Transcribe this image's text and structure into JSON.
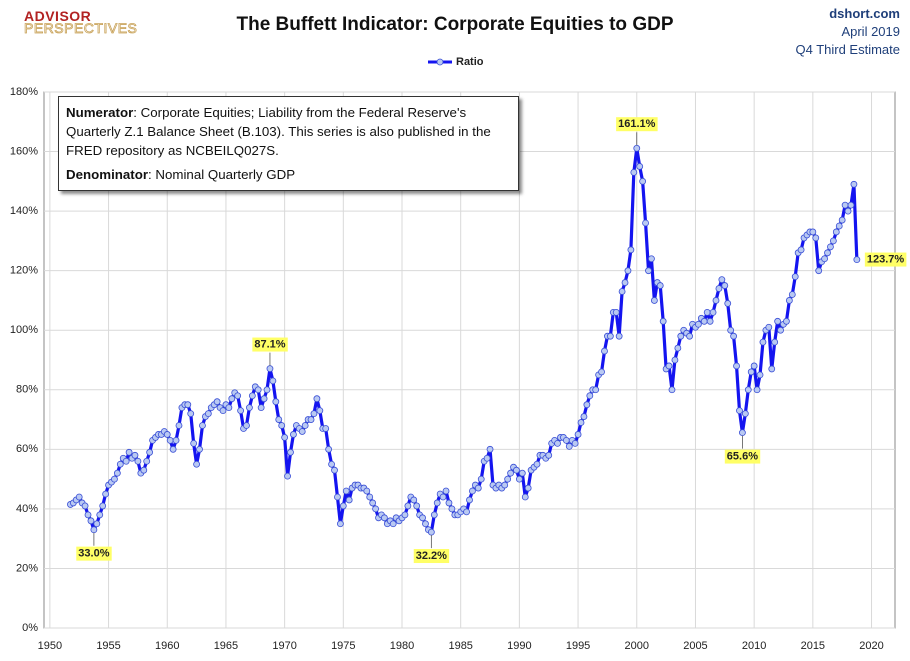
{
  "header": {
    "logo_top": "ADVISOR",
    "logo_bottom": "PERSPECTIVES",
    "source": "dshort.com",
    "date": "April 2019",
    "estimate": "Q4 Third Estimate"
  },
  "chart_data": {
    "type": "line",
    "title": "The Buffett Indicator: Corporate Equities to GDP",
    "note": [
      {
        "label": "Numerator",
        "text": ": Corporate Equities; Liability from the Federal Reserve's Quarterly Z.1 Balance Sheet (B.103). This series is also published in the FRED repository  as NCBEILQ027S."
      },
      {
        "label": "Denominator",
        "text": ": Nominal Quarterly GDP"
      }
    ],
    "xlim": [
      1949.5,
      2022
    ],
    "xticks": [
      1950,
      1955,
      1960,
      1965,
      1970,
      1975,
      1980,
      1985,
      1990,
      1995,
      2000,
      2005,
      2010,
      2015,
      2020
    ],
    "ylim": [
      0,
      180
    ],
    "yticks": [
      {
        "value": 0,
        "label": "0%"
      },
      {
        "value": 20,
        "label": "20%"
      },
      {
        "value": 40,
        "label": "40%"
      },
      {
        "value": 60,
        "label": "60%"
      },
      {
        "value": 80,
        "label": "80%"
      },
      {
        "value": 100,
        "label": "100%"
      },
      {
        "value": 120,
        "label": "120%"
      },
      {
        "value": 140,
        "label": "140%"
      },
      {
        "value": 160,
        "label": "160%"
      },
      {
        "value": 180,
        "label": "180%"
      }
    ],
    "grid": true,
    "legend": "top",
    "x": [
      1951.75,
      1952,
      1952.25,
      1952.5,
      1952.75,
      1953,
      1953.25,
      1953.5,
      1953.75,
      1954,
      1954.25,
      1954.5,
      1954.75,
      1955,
      1955.25,
      1955.5,
      1955.75,
      1956,
      1956.25,
      1956.5,
      1956.75,
      1957,
      1957.25,
      1957.5,
      1957.75,
      1958,
      1958.25,
      1958.5,
      1958.75,
      1959,
      1959.25,
      1959.5,
      1959.75,
      1960,
      1960.25,
      1960.5,
      1960.75,
      1961,
      1961.25,
      1961.5,
      1961.75,
      1962,
      1962.25,
      1962.5,
      1962.75,
      1963,
      1963.25,
      1963.5,
      1963.75,
      1964,
      1964.25,
      1964.5,
      1964.75,
      1965,
      1965.25,
      1965.5,
      1965.75,
      1966,
      1966.25,
      1966.5,
      1966.75,
      1967,
      1967.25,
      1967.5,
      1967.75,
      1968,
      1968.25,
      1968.5,
      1968.75,
      1969,
      1969.25,
      1969.5,
      1969.75,
      1970,
      1970.25,
      1970.5,
      1970.75,
      1971,
      1971.25,
      1971.5,
      1971.75,
      1972,
      1972.25,
      1972.5,
      1972.75,
      1973,
      1973.25,
      1973.5,
      1973.75,
      1974,
      1974.25,
      1974.5,
      1974.75,
      1975,
      1975.25,
      1975.5,
      1975.75,
      1976,
      1976.25,
      1976.5,
      1976.75,
      1977,
      1977.25,
      1977.5,
      1977.75,
      1978,
      1978.25,
      1978.5,
      1978.75,
      1979,
      1979.25,
      1979.5,
      1979.75,
      1980,
      1980.25,
      1980.5,
      1980.75,
      1981,
      1981.25,
      1981.5,
      1981.75,
      1982,
      1982.25,
      1982.5,
      1982.75,
      1983,
      1983.25,
      1983.5,
      1983.75,
      1984,
      1984.25,
      1984.5,
      1984.75,
      1985,
      1985.25,
      1985.5,
      1985.75,
      1986,
      1986.25,
      1986.5,
      1986.75,
      1987,
      1987.25,
      1987.5,
      1987.75,
      1988,
      1988.25,
      1988.5,
      1988.75,
      1989,
      1989.25,
      1989.5,
      1989.75,
      1990,
      1990.25,
      1990.5,
      1990.75,
      1991,
      1991.25,
      1991.5,
      1991.75,
      1992,
      1992.25,
      1992.5,
      1992.75,
      1993,
      1993.25,
      1993.5,
      1993.75,
      1994,
      1994.25,
      1994.5,
      1994.75,
      1995,
      1995.25,
      1995.5,
      1995.75,
      1996,
      1996.25,
      1996.5,
      1996.75,
      1997,
      1997.25,
      1997.5,
      1997.75,
      1998,
      1998.25,
      1998.5,
      1998.75,
      1999,
      1999.25,
      1999.5,
      1999.75,
      2000,
      2000.25,
      2000.5,
      2000.75,
      2001,
      2001.25,
      2001.5,
      2001.75,
      2002,
      2002.25,
      2002.5,
      2002.75,
      2003,
      2003.25,
      2003.5,
      2003.75,
      2004,
      2004.25,
      2004.5,
      2004.75,
      2005,
      2005.25,
      2005.5,
      2005.75,
      2006,
      2006.25,
      2006.5,
      2006.75,
      2007,
      2007.25,
      2007.5,
      2007.75,
      2008,
      2008.25,
      2008.5,
      2008.75,
      2009,
      2009.25,
      2009.5,
      2009.75,
      2010,
      2010.25,
      2010.5,
      2010.75,
      2011,
      2011.25,
      2011.5,
      2011.75,
      2012,
      2012.25,
      2012.5,
      2012.75,
      2013,
      2013.25,
      2013.5,
      2013.75,
      2014,
      2014.25,
      2014.5,
      2014.75,
      2015,
      2015.25,
      2015.5,
      2015.75,
      2016,
      2016.25,
      2016.5,
      2016.75,
      2017,
      2017.25,
      2017.5,
      2017.75,
      2018,
      2018.25,
      2018.5,
      2018.75
    ],
    "series": [
      {
        "name": "Ratio",
        "color": "#1414f0",
        "marker_fill": "#b9c9f2",
        "values": [
          41.5,
          42,
          43,
          44,
          42,
          41,
          38,
          36,
          33.0,
          35,
          38,
          41,
          45,
          48,
          49,
          50,
          52,
          55,
          57,
          56,
          59,
          57,
          58,
          56,
          52,
          53,
          56,
          59,
          63,
          64,
          65,
          65,
          66,
          65,
          63,
          60,
          63,
          68,
          74,
          75,
          75,
          72,
          62,
          55,
          60,
          68,
          71,
          72,
          74,
          75,
          76,
          74,
          73,
          75,
          74,
          77,
          79,
          78,
          73,
          67,
          68,
          74,
          78,
          81,
          80,
          74,
          77,
          80,
          87.1,
          83,
          76,
          70,
          68,
          64,
          51,
          59,
          65,
          68,
          67,
          66,
          68,
          70,
          70,
          72,
          77,
          73,
          67,
          67,
          60,
          55,
          53,
          44,
          35,
          41,
          46,
          43,
          47,
          48,
          48,
          47,
          47,
          46,
          44,
          42,
          40,
          37,
          38,
          37,
          35,
          36,
          35,
          37,
          36,
          37,
          38,
          41,
          44,
          43,
          41,
          38,
          37,
          35,
          33,
          32.2,
          38,
          42,
          45,
          44,
          46,
          42,
          40,
          38,
          38,
          39,
          40,
          39,
          43,
          46,
          48,
          47,
          50,
          56,
          57,
          60,
          48,
          47,
          48,
          47,
          48,
          50,
          52,
          54,
          53,
          50,
          52,
          44,
          47,
          53,
          54,
          55,
          58,
          58,
          57,
          58,
          62,
          63,
          62,
          64,
          64,
          63,
          61,
          63,
          62,
          65,
          69,
          71,
          75,
          78,
          80,
          80,
          85,
          86,
          93,
          98,
          98,
          106,
          106,
          98,
          113,
          116,
          120,
          127,
          153,
          161.1,
          155,
          150,
          136,
          120,
          124,
          110,
          116,
          115,
          103,
          87,
          88,
          80,
          90,
          94,
          98,
          100,
          99,
          98,
          102,
          101,
          102,
          104,
          103,
          106,
          103,
          106,
          110,
          114,
          117,
          115,
          109,
          100,
          98,
          88,
          73,
          65.6,
          72,
          80,
          86,
          88,
          80,
          85,
          96,
          100,
          101,
          87,
          96,
          103,
          100,
          102,
          103,
          110,
          112,
          118,
          126,
          127,
          131,
          132,
          133,
          133,
          131,
          120,
          123,
          124,
          126,
          128,
          130,
          133,
          135,
          137,
          142,
          140,
          142,
          149,
          123.7
        ],
        "value_labels": [
          null,
          null,
          null,
          null,
          null,
          null,
          null,
          null,
          "33.0%",
          null,
          null,
          null,
          null,
          null,
          null,
          null,
          null,
          null,
          null,
          null,
          null,
          null,
          null,
          null,
          null,
          null,
          null,
          null,
          null,
          null,
          null,
          null,
          null,
          null,
          null,
          null,
          null,
          null,
          null,
          null,
          null,
          null,
          null,
          null,
          null,
          null,
          null,
          null,
          null,
          null,
          null,
          null,
          null,
          null,
          null,
          null,
          null,
          null,
          null,
          null,
          null,
          null,
          null,
          null,
          null,
          null,
          null,
          null,
          "87.1%",
          null,
          null,
          null,
          null,
          null,
          null,
          null,
          null,
          null,
          null,
          null,
          null,
          null,
          null,
          null,
          null,
          null,
          null,
          null,
          null,
          null,
          null,
          null,
          null,
          null,
          null,
          null,
          null,
          null,
          null,
          null,
          null,
          null,
          null,
          null,
          null,
          null,
          null,
          null,
          null,
          null,
          null,
          null,
          null,
          null,
          null,
          null,
          null,
          null,
          null,
          null,
          null,
          null,
          null,
          "32.2%",
          null,
          null,
          null,
          null,
          null,
          null,
          null,
          null,
          null,
          null,
          null,
          null,
          null,
          null,
          null,
          null,
          null,
          null,
          null,
          null,
          null,
          null,
          null,
          null,
          null,
          null,
          null,
          null,
          null,
          null,
          null,
          null,
          null,
          null,
          null,
          null,
          null,
          null,
          null,
          null,
          null,
          null,
          null,
          null,
          null,
          null,
          null,
          null,
          null,
          null,
          null,
          null,
          null,
          null,
          null,
          null,
          null,
          null,
          null,
          null,
          null,
          null,
          null,
          null,
          null,
          null,
          null,
          null,
          null,
          "161.1%",
          null,
          null,
          null,
          null,
          null,
          null,
          null,
          null,
          null,
          null,
          null,
          null,
          null,
          null,
          null,
          null,
          null,
          null,
          null,
          null,
          null,
          null,
          null,
          null,
          null,
          null,
          null,
          null,
          null,
          null,
          null,
          null,
          null,
          null,
          null,
          "65.6%",
          null,
          null,
          null,
          null,
          null,
          null,
          null,
          null,
          null,
          null,
          null,
          null,
          null,
          null,
          null,
          null,
          null,
          null,
          null,
          null,
          null,
          null,
          null,
          null,
          null,
          null,
          null,
          null,
          null,
          null,
          null,
          null,
          null,
          null,
          null,
          null,
          null,
          null,
          "123.7%"
        ]
      }
    ]
  }
}
